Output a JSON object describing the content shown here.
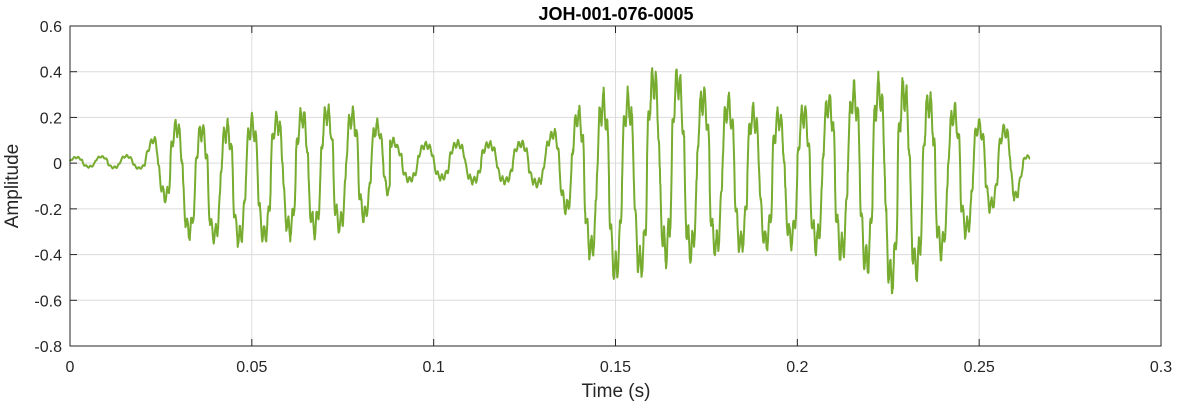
{
  "chart_data": {
    "type": "line",
    "title": "JOH-001-076-0005",
    "xlabel": "Time (s)",
    "ylabel": "Amplitude",
    "xlim": [
      0,
      0.3
    ],
    "ylim": [
      -0.8,
      0.6
    ],
    "x_ticks": [
      0,
      0.05,
      0.1,
      0.15,
      0.2,
      0.25,
      0.3
    ],
    "x_tick_labels": [
      "0",
      "0.05",
      "0.1",
      "0.15",
      "0.2",
      "0.25",
      "0.3"
    ],
    "y_ticks": [
      -0.8,
      -0.6,
      -0.4,
      -0.2,
      0,
      0.2,
      0.4,
      0.6
    ],
    "y_tick_labels": [
      "-0.8",
      "-0.6",
      "-0.4",
      "-0.2",
      "0",
      "0.2",
      "0.4",
      "0.6"
    ],
    "grid": true,
    "series": [
      {
        "color": "#77AC30",
        "x_range": [
          0,
          0.264
        ],
        "envelope": [
          {
            "t": 0.0,
            "max": 0.03,
            "min": -0.02
          },
          {
            "t": 0.02,
            "max": 0.04,
            "min": -0.03
          },
          {
            "t": 0.025,
            "max": 0.2,
            "min": -0.15
          },
          {
            "t": 0.03,
            "max": 0.22,
            "min": -0.35
          },
          {
            "t": 0.04,
            "max": 0.2,
            "min": -0.38
          },
          {
            "t": 0.05,
            "max": 0.24,
            "min": -0.4
          },
          {
            "t": 0.06,
            "max": 0.26,
            "min": -0.36
          },
          {
            "t": 0.07,
            "max": 0.29,
            "min": -0.35
          },
          {
            "t": 0.078,
            "max": 0.27,
            "min": -0.33
          },
          {
            "t": 0.085,
            "max": 0.2,
            "min": -0.22
          },
          {
            "t": 0.09,
            "max": 0.1,
            "min": -0.1
          },
          {
            "t": 0.1,
            "max": 0.1,
            "min": -0.08
          },
          {
            "t": 0.11,
            "max": 0.11,
            "min": -0.1
          },
          {
            "t": 0.12,
            "max": 0.1,
            "min": -0.1
          },
          {
            "t": 0.13,
            "max": 0.12,
            "min": -0.12
          },
          {
            "t": 0.135,
            "max": 0.2,
            "min": -0.2
          },
          {
            "t": 0.14,
            "max": 0.28,
            "min": -0.37
          },
          {
            "t": 0.145,
            "max": 0.35,
            "min": -0.52
          },
          {
            "t": 0.15,
            "max": 0.36,
            "min": -0.57
          },
          {
            "t": 0.155,
            "max": 0.36,
            "min": -0.55
          },
          {
            "t": 0.16,
            "max": 0.46,
            "min": -0.55
          },
          {
            "t": 0.163,
            "max": 0.55,
            "min": -0.5
          },
          {
            "t": 0.17,
            "max": 0.4,
            "min": -0.48
          },
          {
            "t": 0.18,
            "max": 0.35,
            "min": -0.45
          },
          {
            "t": 0.19,
            "max": 0.27,
            "min": -0.42
          },
          {
            "t": 0.2,
            "max": 0.28,
            "min": -0.4
          },
          {
            "t": 0.21,
            "max": 0.36,
            "min": -0.45
          },
          {
            "t": 0.22,
            "max": 0.42,
            "min": -0.55
          },
          {
            "t": 0.225,
            "max": 0.44,
            "min": -0.63
          },
          {
            "t": 0.23,
            "max": 0.42,
            "min": -0.6
          },
          {
            "t": 0.24,
            "max": 0.32,
            "min": -0.45
          },
          {
            "t": 0.25,
            "max": 0.22,
            "min": -0.3
          },
          {
            "t": 0.255,
            "max": 0.18,
            "min": -0.2
          },
          {
            "t": 0.26,
            "max": 0.2,
            "min": -0.2
          },
          {
            "t": 0.262,
            "max": 0.06,
            "min": -0.07
          },
          {
            "t": 0.264,
            "max": 0.03,
            "min": -0.03
          }
        ]
      }
    ]
  }
}
